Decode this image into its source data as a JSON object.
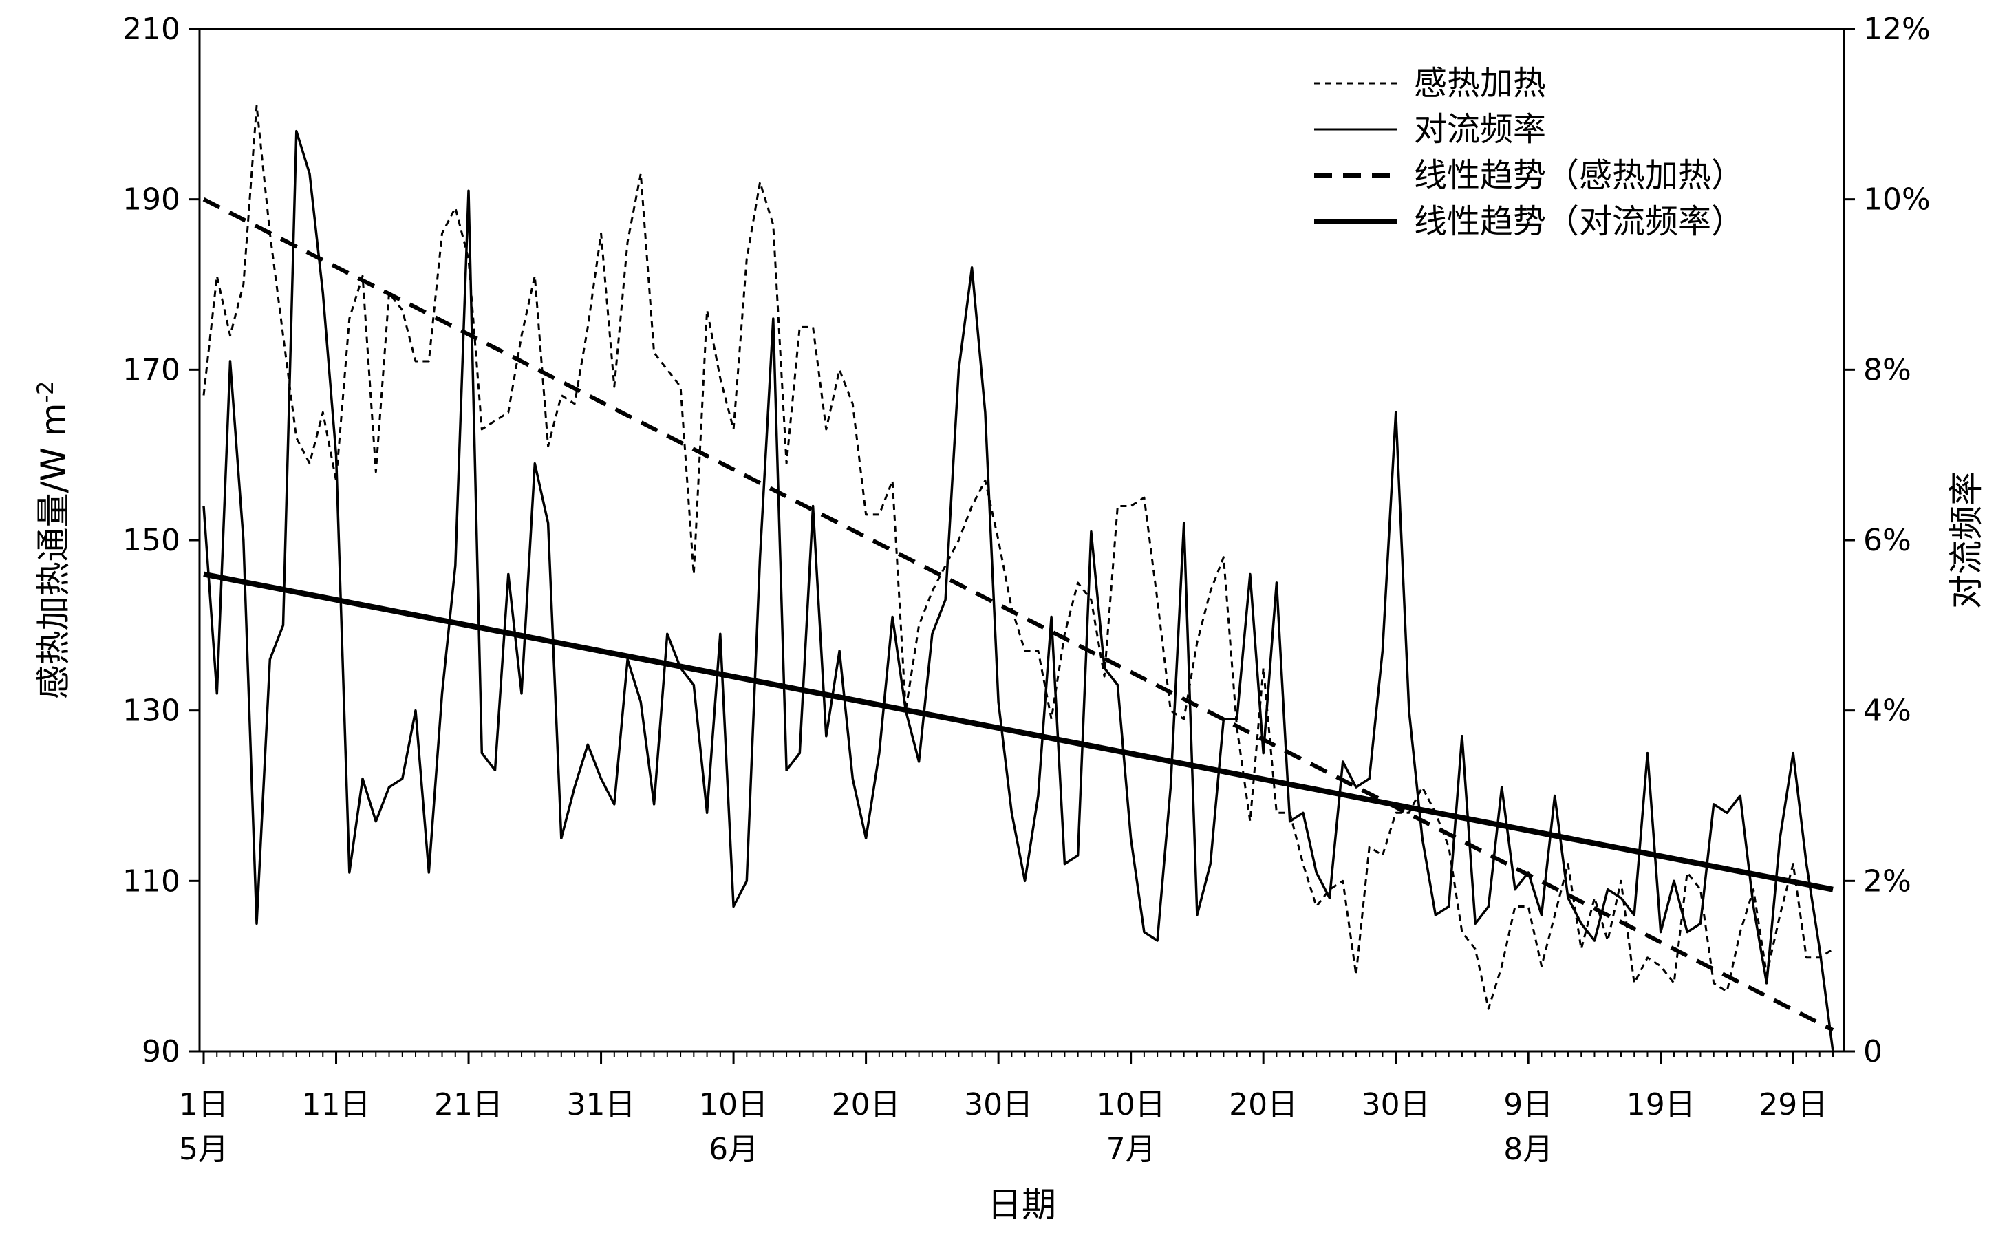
{
  "chart_data": {
    "type": "line",
    "xlabel": "日期",
    "ylabel": "感热加热通量/W m-2",
    "ylabel_main": "感热加热通量/W m",
    "ylabel_sup": "-2",
    "y2label": "对流频率",
    "ylim": [
      90,
      210
    ],
    "y2lim": [
      0,
      12
    ],
    "yticks": [
      90,
      110,
      130,
      150,
      170,
      190,
      210
    ],
    "y2ticks": [
      "0",
      "2%",
      "4%",
      "6%",
      "8%",
      "10%",
      "12%"
    ],
    "y2tick_values": [
      0,
      2,
      4,
      6,
      8,
      10,
      12
    ],
    "xlim": [
      1,
      124
    ],
    "xticks": [
      {
        "day": 1,
        "label": "1日",
        "month": "5月"
      },
      {
        "day": 11,
        "label": "11日",
        "month": ""
      },
      {
        "day": 21,
        "label": "21日",
        "month": ""
      },
      {
        "day": 31,
        "label": "31日",
        "month": ""
      },
      {
        "day": 41,
        "label": "10日",
        "month": "6月"
      },
      {
        "day": 51,
        "label": "20日",
        "month": ""
      },
      {
        "day": 61,
        "label": "30日",
        "month": ""
      },
      {
        "day": 71,
        "label": "10日",
        "month": "7月"
      },
      {
        "day": 81,
        "label": "20日",
        "month": ""
      },
      {
        "day": 91,
        "label": "30日",
        "month": ""
      },
      {
        "day": 101,
        "label": "9日",
        "month": "8月"
      },
      {
        "day": 111,
        "label": "19日",
        "month": ""
      },
      {
        "day": 121,
        "label": "29日",
        "month": ""
      }
    ],
    "legend_position": "top-right",
    "legend": {
      "sensible": "感热加热",
      "convection": "对流频率",
      "sensible_trend": "线性趋势（感热加热）",
      "convection_trend": "线性趋势（对流频率）"
    },
    "series": [
      {
        "name": "感热加热",
        "axis": "left",
        "style": "dotted",
        "x_start": 1,
        "values": [
          167,
          181,
          174,
          180,
          201,
          186,
          174,
          162,
          159,
          165,
          157,
          176,
          181,
          158,
          179,
          177,
          171,
          171,
          186,
          189,
          183,
          163,
          164,
          165,
          174,
          181,
          161,
          167,
          166,
          175,
          186,
          168,
          185,
          193,
          172,
          170,
          168,
          146,
          177,
          169,
          163,
          183,
          192,
          187,
          159,
          175,
          175,
          163,
          170,
          166,
          153,
          153,
          157,
          130,
          140,
          144,
          147,
          150,
          154,
          157,
          150,
          142,
          137,
          137,
          129,
          139,
          145,
          143,
          134,
          154,
          154,
          155,
          143,
          130,
          129,
          138,
          144,
          148,
          128,
          117,
          135,
          118,
          118,
          112,
          107,
          109,
          110,
          99,
          114,
          113,
          118,
          118,
          121,
          118,
          114,
          104,
          102,
          95,
          100,
          107,
          107,
          100,
          106,
          112,
          102,
          108,
          103,
          110,
          98,
          101,
          100,
          98,
          111,
          109,
          98,
          97,
          104,
          109,
          99,
          106,
          112,
          101,
          101,
          102
        ]
      },
      {
        "name": "对流频率",
        "axis": "right",
        "style": "solid",
        "x_start": 1,
        "values": [
          6.4,
          4.2,
          8.1,
          6.0,
          1.5,
          4.6,
          5.0,
          10.8,
          10.3,
          8.9,
          7.0,
          2.1,
          3.2,
          2.7,
          3.1,
          3.2,
          4.0,
          2.1,
          4.2,
          5.7,
          10.1,
          3.5,
          3.3,
          5.6,
          4.2,
          6.9,
          6.2,
          2.5,
          3.1,
          3.6,
          3.2,
          2.9,
          4.6,
          4.1,
          2.9,
          4.9,
          4.5,
          4.3,
          2.8,
          4.9,
          1.7,
          2.0,
          5.8,
          8.6,
          3.3,
          3.5,
          6.4,
          3.7,
          4.7,
          3.2,
          2.5,
          3.5,
          5.1,
          4.0,
          3.4,
          4.9,
          5.3,
          8.0,
          9.2,
          7.5,
          4.1,
          2.8,
          2.0,
          3.0,
          5.1,
          2.2,
          2.3,
          6.1,
          4.5,
          4.3,
          2.5,
          1.4,
          1.3,
          3.1,
          6.2,
          1.6,
          2.2,
          3.9,
          3.9,
          5.6,
          3.5,
          5.5,
          2.7,
          2.8,
          2.1,
          1.8,
          3.4,
          3.1,
          3.2,
          4.7,
          7.5,
          4.0,
          2.5,
          1.6,
          1.7,
          3.7,
          1.5,
          1.7,
          3.1,
          1.9,
          2.1,
          1.6,
          3.0,
          1.8,
          1.5,
          1.3,
          1.9,
          1.8,
          1.6,
          3.5,
          1.4,
          2.0,
          1.4,
          1.5,
          2.9,
          2.8,
          3.0,
          1.7,
          0.8,
          2.5,
          3.5,
          2.2,
          1.2,
          0.0
        ]
      },
      {
        "name": "线性趋势（感热加热）",
        "axis": "left",
        "style": "dashed-trend",
        "start": {
          "x": 1,
          "y": 190
        },
        "end": {
          "x": 124,
          "y": 92.5
        }
      },
      {
        "name": "线性趋势（对流频率）",
        "axis": "right",
        "style": "solid-trend",
        "start": {
          "x": 1,
          "y": 5.6
        },
        "end": {
          "x": 124,
          "y": 1.9
        }
      }
    ]
  }
}
